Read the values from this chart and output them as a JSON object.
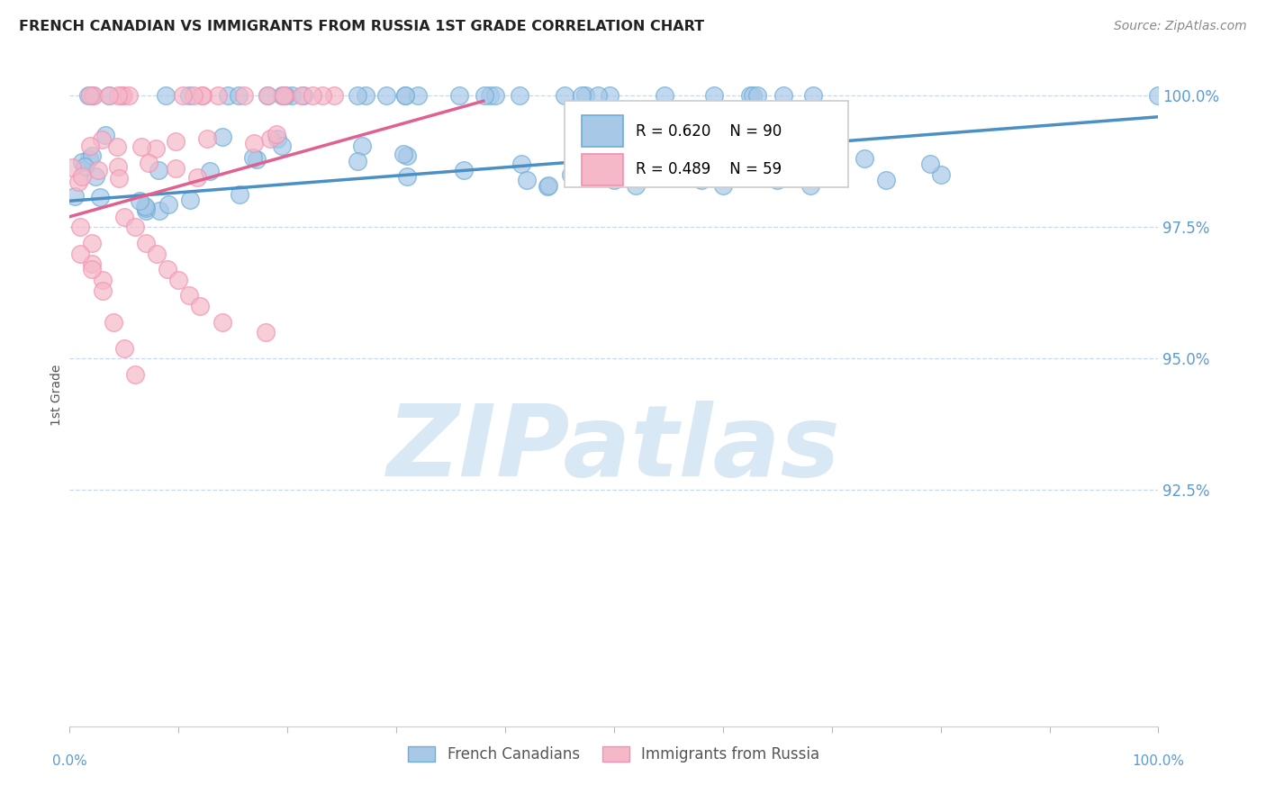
{
  "title": "FRENCH CANADIAN VS IMMIGRANTS FROM RUSSIA 1ST GRADE CORRELATION CHART",
  "source_text": "Source: ZipAtlas.com",
  "ylabel": "1st Grade",
  "watermark": "ZIPatlas",
  "blue_R": 0.62,
  "blue_N": 90,
  "pink_R": 0.489,
  "pink_N": 59,
  "blue_label": "French Canadians",
  "pink_label": "Immigrants from Russia",
  "blue_color": "#a8c8e8",
  "pink_color": "#f4b8c8",
  "blue_edge_color": "#6baed6",
  "pink_edge_color": "#f48fb1",
  "blue_line_color": "#4a90c4",
  "pink_line_color": "#e06090",
  "legend_text_color": "#000000",
  "legend_blue_swatch": "#a8c8e8",
  "legend_pink_swatch": "#f4b8c8",
  "axis_color": "#5b9bd5",
  "grid_color": "#c8d8ea",
  "watermark_color": "#d8e8f4",
  "ytick_labels": [
    "92.5%",
    "95.0%",
    "97.5%",
    "100.0%"
  ],
  "ytick_values": [
    0.925,
    0.95,
    0.975,
    1.0
  ],
  "xlim": [
    0.0,
    1.0
  ],
  "ylim": [
    0.88,
    1.006
  ],
  "blue_trend_x": [
    0.0,
    1.0
  ],
  "blue_trend_y_start": 0.98,
  "blue_trend_y_end": 0.996,
  "pink_trend_x": [
    0.0,
    0.38
  ],
  "pink_trend_y_start": 0.977,
  "pink_trend_y_end": 0.999
}
